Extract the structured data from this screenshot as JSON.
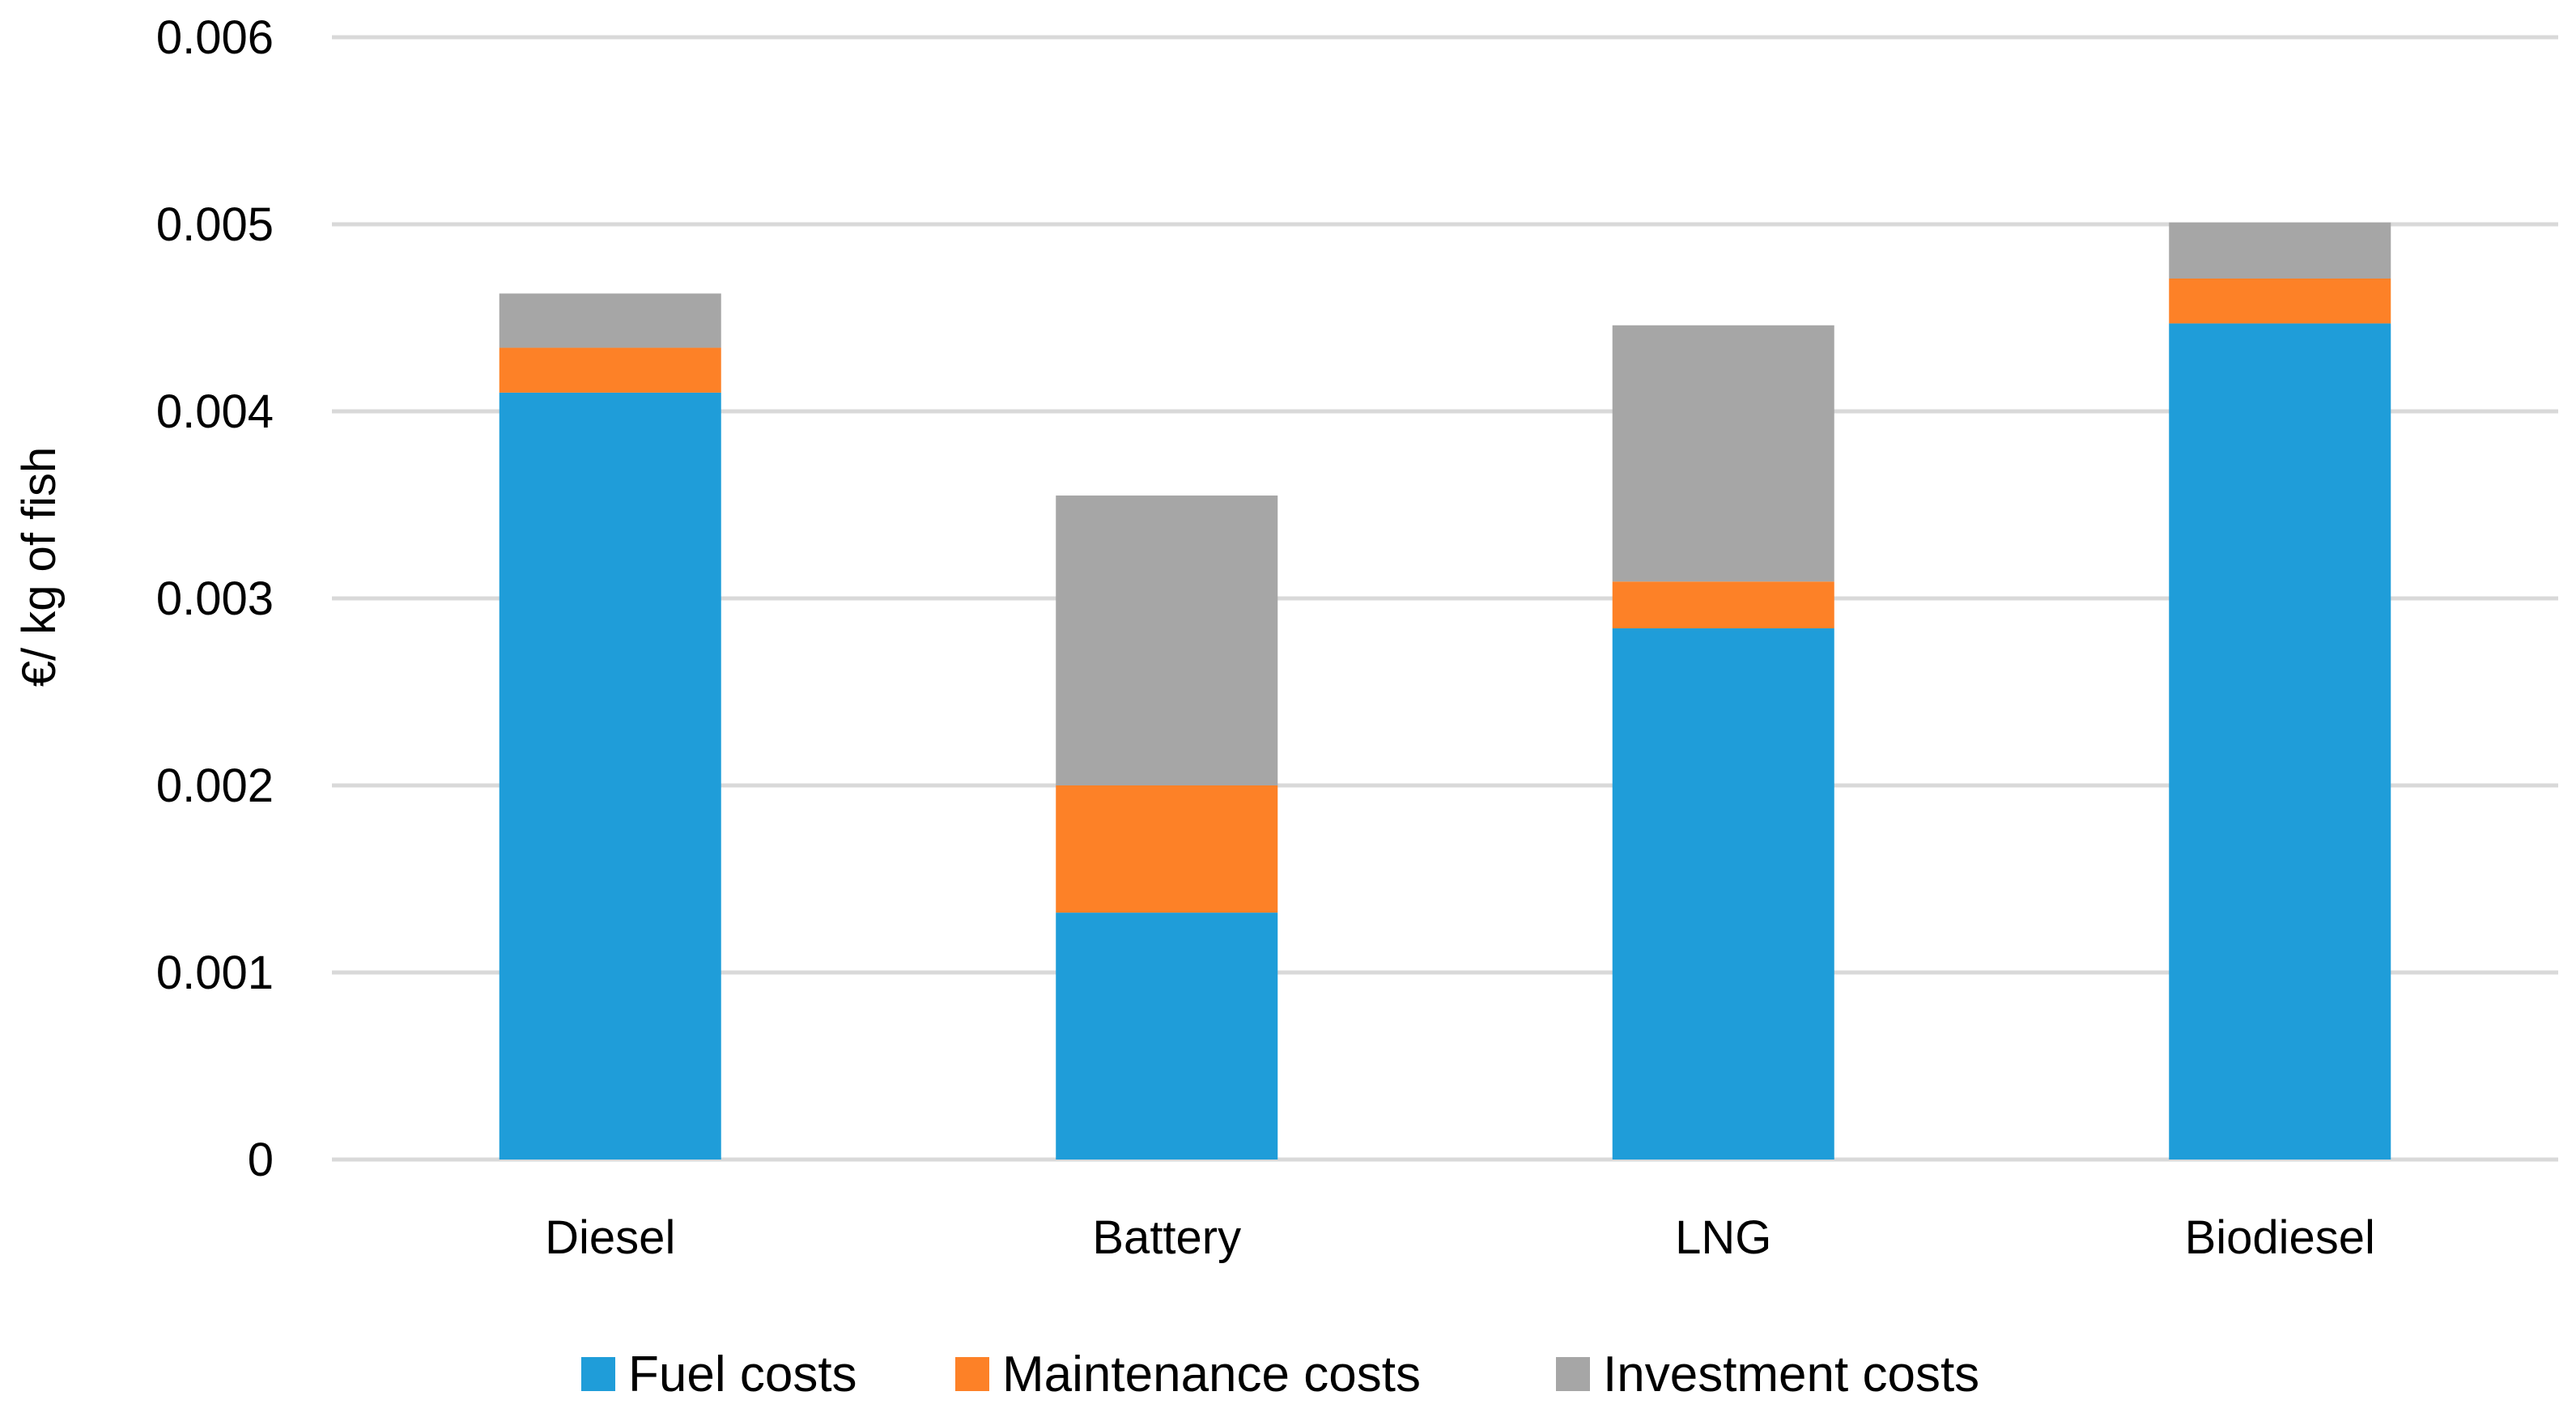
{
  "chart_data": {
    "type": "bar",
    "stacked": true,
    "title": "",
    "xlabel": "",
    "ylabel": "€/ kg of fish",
    "ylim": [
      0,
      0.006
    ],
    "yticks": [
      0,
      0.001,
      0.002,
      0.003,
      0.004,
      0.005,
      0.006
    ],
    "ytick_labels": [
      "0",
      "0.001",
      "0.002",
      "0.003",
      "0.004",
      "0.005",
      "0.006"
    ],
    "grid": true,
    "legend_position": "bottom",
    "categories": [
      "Diesel",
      "Battery",
      "LNG",
      "Biodiesel"
    ],
    "series": [
      {
        "name": "Fuel costs",
        "color": "#1f9dd9",
        "values": [
          0.0041,
          0.00132,
          0.00284,
          0.00447
        ]
      },
      {
        "name": "Maintenance costs",
        "color": "#fd8127",
        "values": [
          0.00024,
          0.00068,
          0.00025,
          0.00024
        ]
      },
      {
        "name": "Investment costs",
        "color": "#a6a6a6",
        "values": [
          0.00029,
          0.00155,
          0.00137,
          0.0003
        ]
      }
    ]
  }
}
